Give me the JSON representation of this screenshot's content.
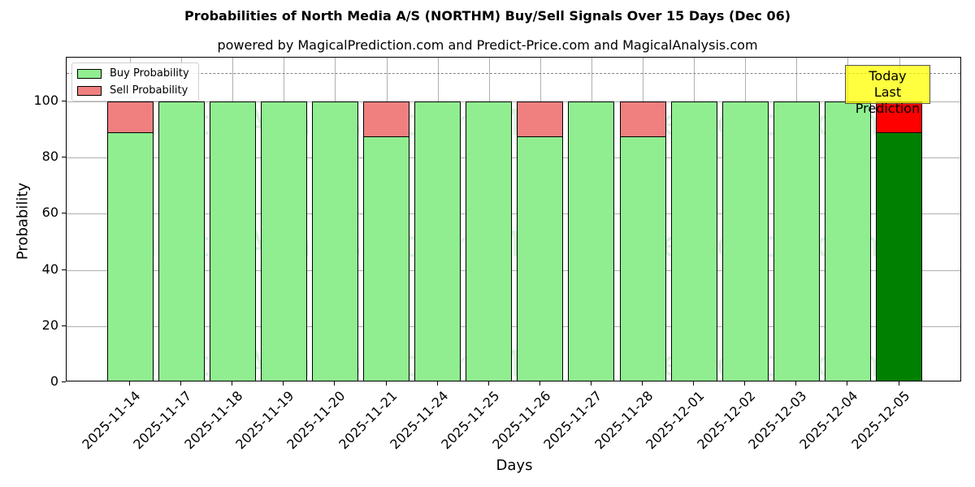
{
  "header": {
    "title": "Probabilities of North Media A/S (NORTHM) Buy/Sell Signals Over 15 Days (Dec 06)",
    "subtitle": "powered by MagicalPrediction.com and Predict-Price.com and MagicalAnalysis.com"
  },
  "legend": {
    "buy_label": "Buy Probability",
    "sell_label": "Sell Probability"
  },
  "annotation": {
    "line1": "Today",
    "line2": "Last Prediction"
  },
  "watermarks": [
    "MagicalAnalysis.com",
    "MagicalPrediction.com"
  ],
  "colors": {
    "buy": "#90ee90",
    "sell": "#f08080",
    "today_buy": "#008000",
    "today_sell": "#ff0000",
    "annotation_bg": "#ffff40"
  },
  "chart_data": {
    "type": "bar",
    "stacked": true,
    "title": "Probabilities of North Media A/S (NORTHM) Buy/Sell Signals Over 15 Days (Dec 06)",
    "subtitle": "powered by MagicalPrediction.com and Predict-Price.com and MagicalAnalysis.com",
    "xlabel": "Days",
    "ylabel": "Probability",
    "ylim": [
      0,
      115
    ],
    "yticks": [
      0,
      20,
      40,
      60,
      80,
      100
    ],
    "grid": true,
    "legend_position": "upper left",
    "reference_line": {
      "y": 110,
      "style": "dashed",
      "color": "#808080"
    },
    "categories": [
      "2025-11-14",
      "2025-11-17",
      "2025-11-18",
      "2025-11-19",
      "2025-11-20",
      "2025-11-21",
      "2025-11-24",
      "2025-11-25",
      "2025-11-26",
      "2025-11-27",
      "2025-11-28",
      "2025-12-01",
      "2025-12-02",
      "2025-12-03",
      "2025-12-04",
      "2025-12-05"
    ],
    "series": [
      {
        "name": "Buy Probability",
        "values": [
          89,
          100,
          100,
          100,
          100,
          87.5,
          100,
          100,
          87.5,
          100,
          87.5,
          100,
          100,
          100,
          100,
          89
        ]
      },
      {
        "name": "Sell Probability",
        "values": [
          11,
          0,
          0,
          0,
          0,
          12.5,
          0,
          0,
          12.5,
          0,
          12.5,
          0,
          0,
          0,
          0,
          11
        ]
      }
    ],
    "highlight": {
      "index": 15,
      "label": "Today\nLast Prediction"
    }
  },
  "axes": {
    "xlabel": "Days",
    "ylabel": "Probability",
    "yticks": [
      "0",
      "20",
      "40",
      "60",
      "80",
      "100"
    ]
  }
}
